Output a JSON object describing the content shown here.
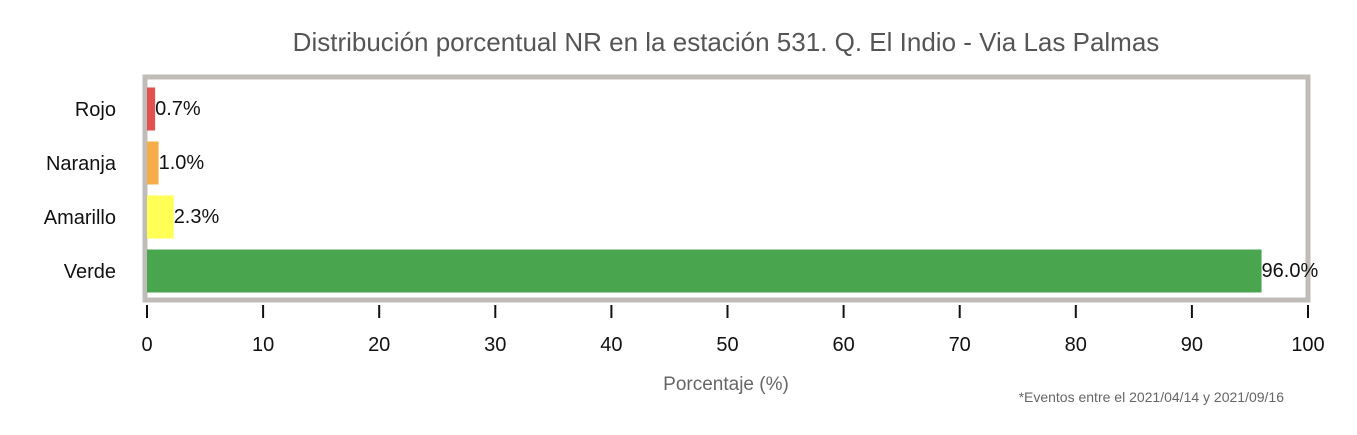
{
  "chart_data": {
    "type": "bar",
    "orientation": "horizontal",
    "title": "Distribución porcentual NR en la estación 531. Q. El Indio - Via Las Palmas",
    "xlabel": "Porcentaje (%)",
    "ylabel": "",
    "xlim": [
      0,
      100
    ],
    "xticks": [
      0,
      10,
      20,
      30,
      40,
      50,
      60,
      70,
      80,
      90,
      100
    ],
    "grid": false,
    "categories": [
      "Rojo",
      "Naranja",
      "Amarillo",
      "Verde"
    ],
    "values": [
      0.7,
      1.0,
      2.3,
      96.0
    ],
    "data_labels": [
      "0.7%",
      "1.0%",
      "2.3%",
      "96.0%"
    ],
    "colors": [
      "#e0514f",
      "#f5ad4a",
      "#ffff55",
      "#4aa64e"
    ],
    "footnote": "*Eventos entre el 2021/04/14 y 2021/09/16"
  }
}
